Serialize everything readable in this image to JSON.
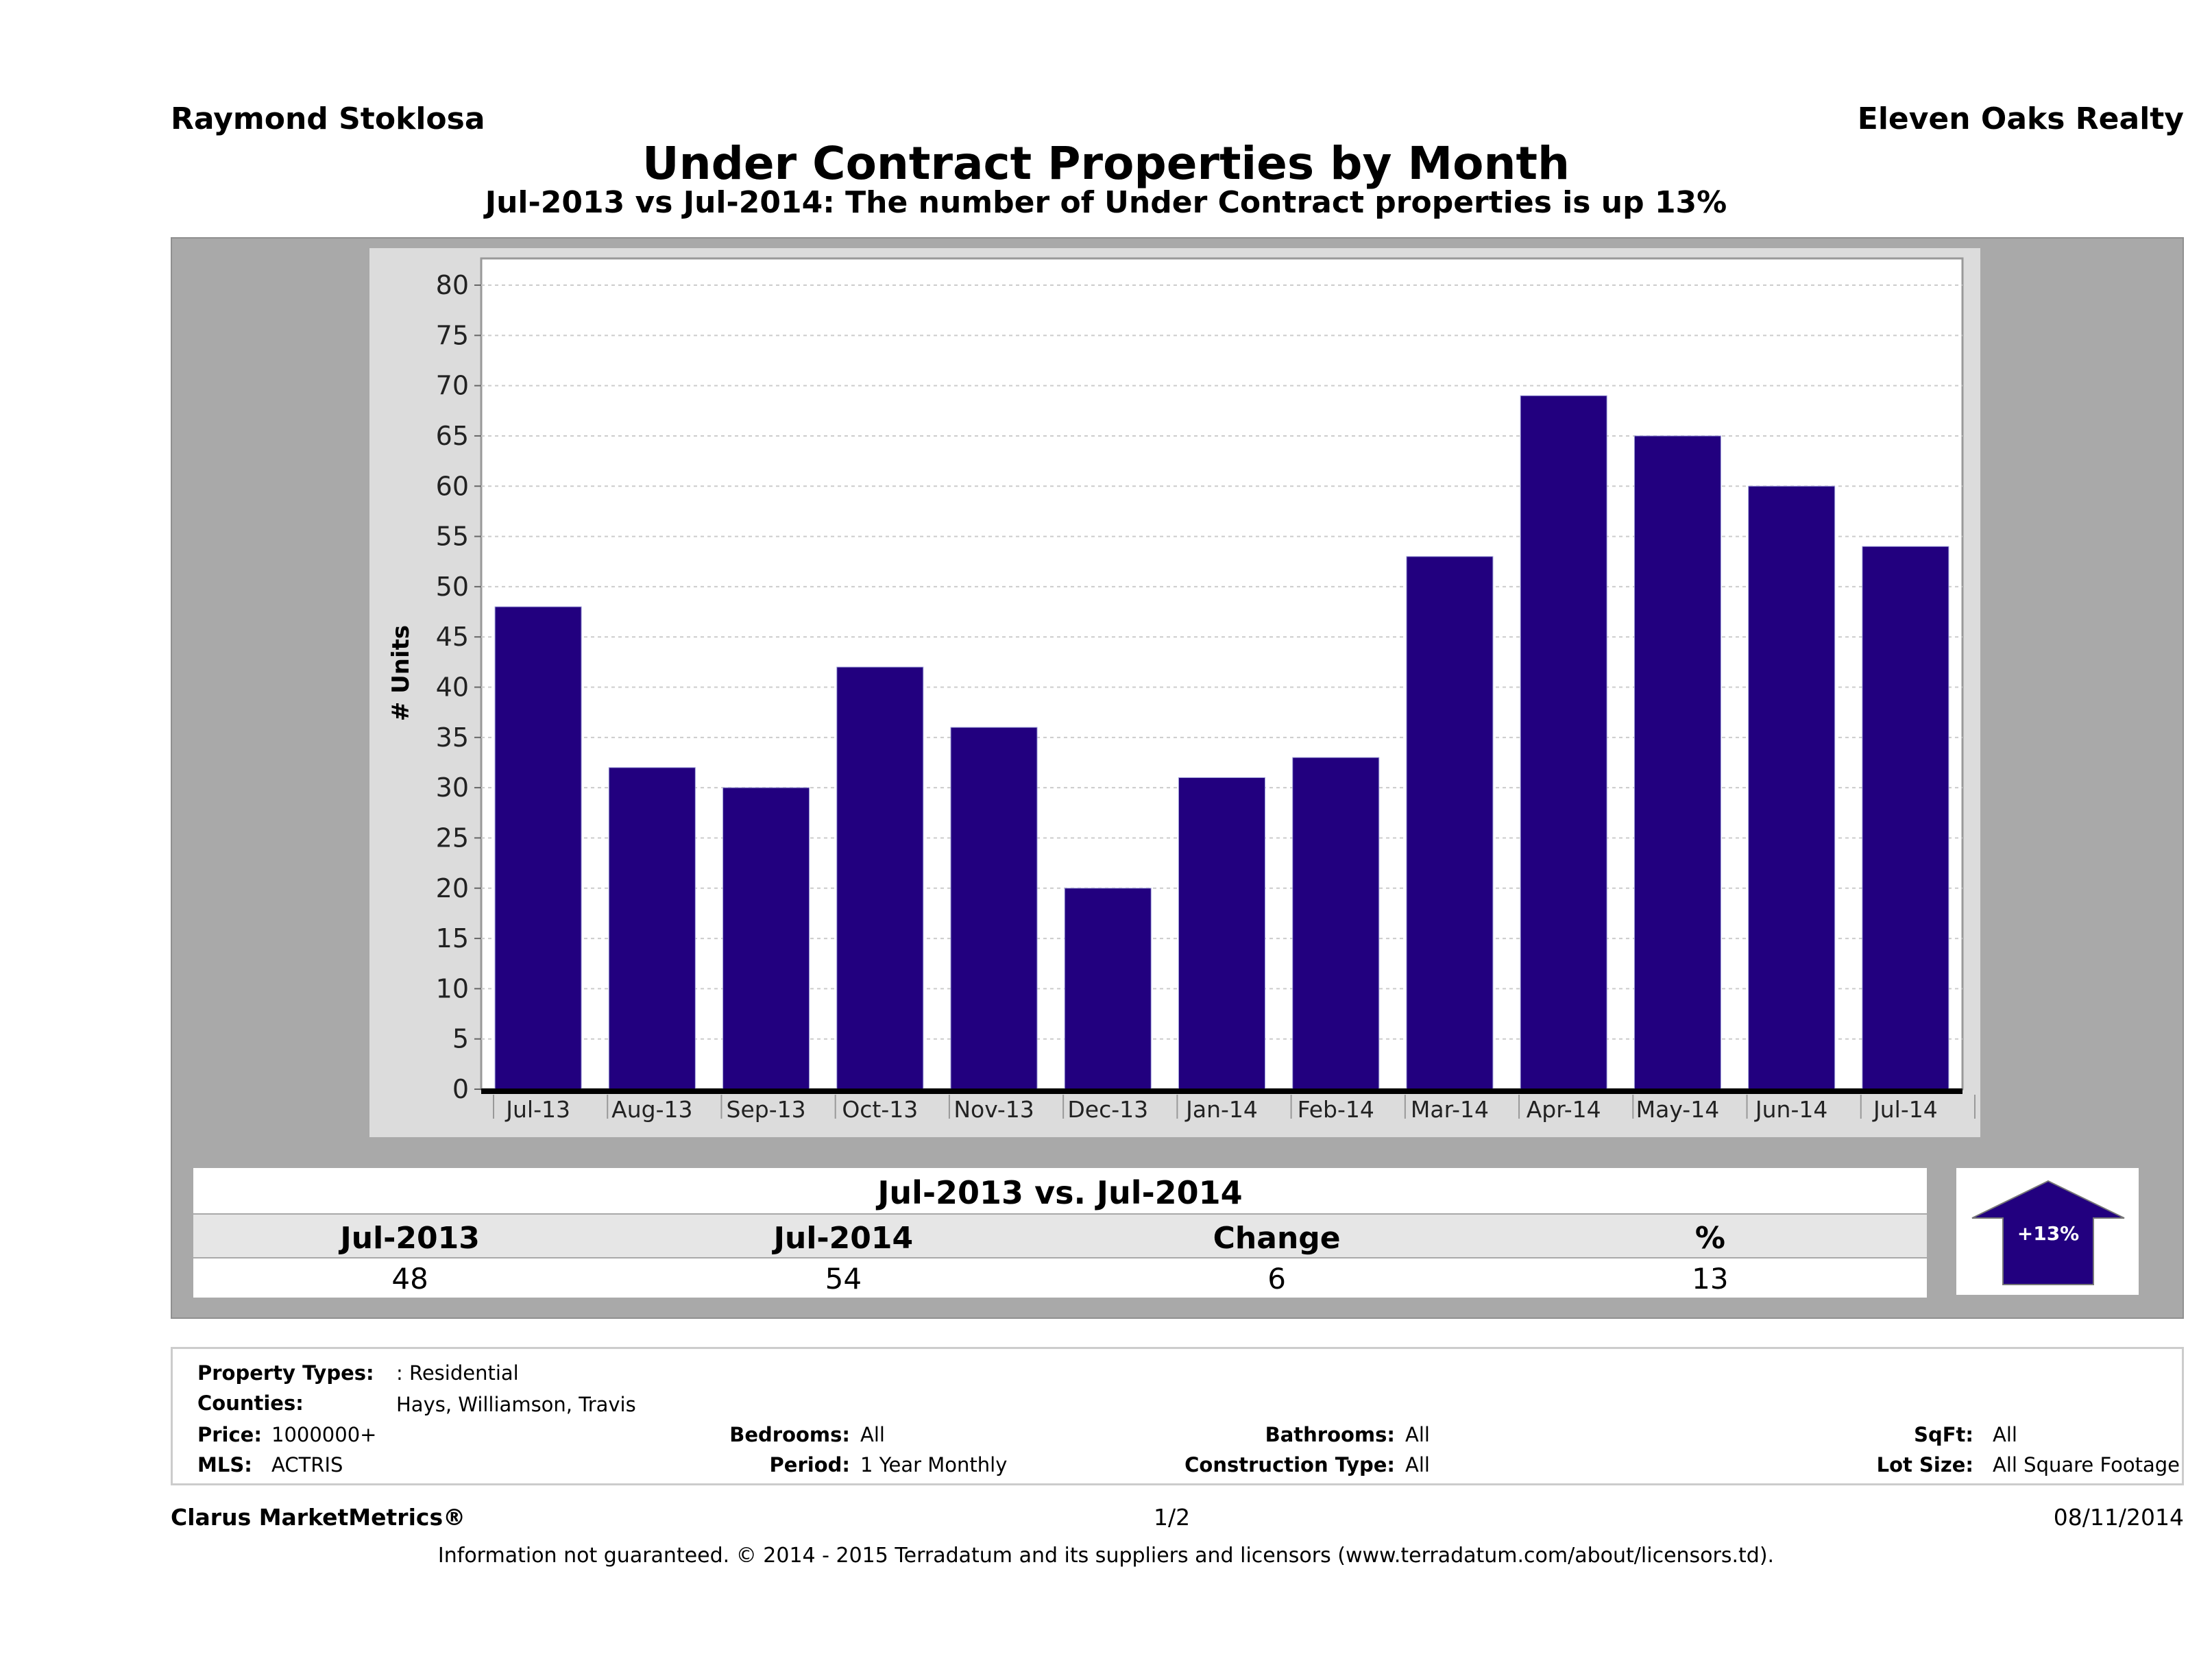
{
  "header": {
    "agent": "Raymond Stoklosa",
    "brokerage": "Eleven Oaks Realty"
  },
  "title": "Under Contract Properties by Month",
  "subtitle": "Jul-2013 vs Jul-2014: The number of Under Contract   properties is up 13%",
  "chart_data": {
    "type": "bar",
    "categories": [
      "Jul-13",
      "Aug-13",
      "Sep-13",
      "Oct-13",
      "Nov-13",
      "Dec-13",
      "Jan-14",
      "Feb-14",
      "Mar-14",
      "Apr-14",
      "May-14",
      "Jun-14",
      "Jul-14"
    ],
    "values": [
      48,
      32,
      30,
      42,
      36,
      20,
      31,
      33,
      53,
      69,
      65,
      60,
      54
    ],
    "ylabel": "# Units",
    "xlabel": "",
    "ylim": [
      0,
      80
    ],
    "yticks": [
      0,
      5,
      10,
      15,
      20,
      25,
      30,
      35,
      40,
      45,
      50,
      55,
      60,
      65,
      70,
      75,
      80
    ],
    "grid": true,
    "bar_color": "#22007f"
  },
  "summary": {
    "heading": "Jul-2013 vs. Jul-2014",
    "labels": [
      "Jul-2013",
      "Jul-2014",
      "Change",
      "%"
    ],
    "values": [
      "48",
      "54",
      "6",
      "13"
    ],
    "badge": "+13%",
    "arrow_color": "#22007f",
    "arrow_icon": "arrow-up-icon"
  },
  "info": {
    "property_types_label": "Property Types:",
    "property_types": ": Residential",
    "counties_label": "Counties:",
    "counties": "Hays, Williamson, Travis",
    "price_label": "Price:",
    "price": "1000000+",
    "mls_label": "MLS:",
    "mls": "ACTRIS",
    "bedrooms_label": "Bedrooms:",
    "bedrooms": "All",
    "period_label": "Period:",
    "period": "1 Year Monthly",
    "bathrooms_label": "Bathrooms:",
    "bathrooms": "All",
    "construction_label": "Construction Type:",
    "construction": "All",
    "sqft_label": "SqFt:",
    "sqft": "All",
    "lotsize_label": "Lot Size:",
    "lotsize": "All Square Footage"
  },
  "footer": {
    "product": "Clarus MarketMetrics®",
    "page": "1/2",
    "date": "08/11/2014",
    "disclaimer": "Information not guaranteed. © 2014 - 2015 Terradatum and its suppliers and licensors (www.terradatum.com/about/licensors.td)."
  }
}
